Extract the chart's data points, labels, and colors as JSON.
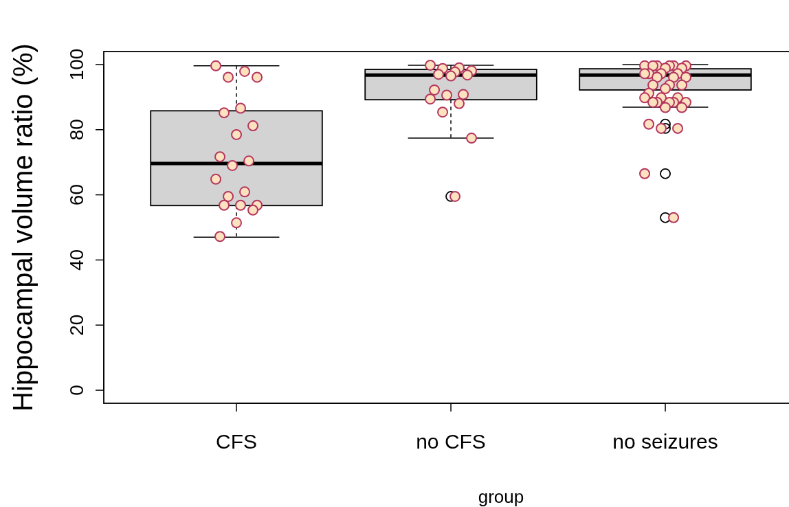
{
  "chart_data": {
    "type": "box",
    "xlabel": "group",
    "ylabel": "Hippocampal volume ratio (%)",
    "categories": [
      "CFS",
      "no CFS",
      "no seizures"
    ],
    "ylim": [
      -4,
      104
    ],
    "yticks": [
      0,
      20,
      40,
      60,
      80,
      100
    ],
    "grid": false,
    "series": [
      {
        "color": "#d3d3d3",
        "boxes": [
          {
            "low": 47.0,
            "q1": 56.7,
            "median": 69.6,
            "q3": 85.8,
            "high": 99.6
          },
          {
            "low": 77.4,
            "q1": 89.2,
            "median": 96.8,
            "q3": 98.5,
            "high": 99.8,
            "outliers": [
              59.5
            ]
          },
          {
            "low": 86.9,
            "q1": 92.2,
            "median": 96.8,
            "q3": 98.7,
            "high": 100.0,
            "outliers": [
              81.7,
              80.4,
              66.5,
              53.0
            ]
          }
        ]
      },
      {
        "type": "scatter",
        "color": "#fde2c0",
        "marker": "circle",
        "x": [
          "CFS",
          "CFS",
          "CFS",
          "CFS",
          "CFS",
          "CFS",
          "CFS",
          "CFS",
          "CFS",
          "CFS",
          "CFS",
          "CFS",
          "CFS",
          "CFS",
          "CFS",
          "CFS",
          "CFS",
          "CFS",
          "CFS",
          "CFS",
          "no CFS",
          "no CFS",
          "no CFS",
          "no CFS",
          "no CFS",
          "no CFS",
          "no CFS",
          "no CFS",
          "no CFS",
          "no CFS",
          "no CFS",
          "no CFS",
          "no CFS",
          "no CFS",
          "no CFS",
          "no CFS",
          "no seizures",
          "no seizures",
          "no seizures",
          "no seizures",
          "no seizures",
          "no seizures",
          "no seizures",
          "no seizures",
          "no seizures",
          "no seizures",
          "no seizures",
          "no seizures",
          "no seizures",
          "no seizures",
          "no seizures",
          "no seizures",
          "no seizures",
          "no seizures",
          "no seizures",
          "no seizures",
          "no seizures",
          "no seizures",
          "no seizures",
          "no seizures",
          "no seizures",
          "no seizures",
          "no seizures",
          "no seizures",
          "no seizures",
          "no seizures",
          "no seizures",
          "no seizures",
          "no seizures",
          "no seizures",
          "no seizures"
        ],
        "values": [
          99.6,
          97.9,
          96.1,
          96.1,
          86.6,
          85.2,
          81.2,
          78.5,
          71.7,
          70.4,
          69.0,
          64.8,
          60.9,
          59.5,
          56.8,
          56.8,
          56.8,
          55.3,
          51.4,
          47.2,
          99.8,
          99.0,
          98.8,
          98.1,
          97.7,
          97.0,
          96.8,
          96.5,
          92.2,
          90.8,
          90.6,
          89.4,
          88.0,
          85.4,
          77.4,
          59.5,
          99.6,
          99.6,
          99.6,
          99.6,
          99.6,
          99.6,
          98.9,
          98.9,
          97.2,
          97.2,
          97.2,
          97.2,
          96.1,
          96.1,
          96.1,
          93.7,
          93.7,
          93.7,
          92.6,
          91.2,
          89.8,
          89.8,
          89.8,
          88.4,
          88.4,
          88.4,
          88.4,
          88.4,
          86.8,
          86.8,
          81.7,
          80.4,
          80.4,
          66.5,
          53.0
        ]
      }
    ]
  }
}
